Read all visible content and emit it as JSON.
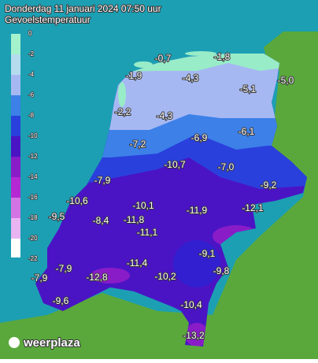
{
  "header": {
    "title": "Donderdag 11 januari 2024 07:50 uur",
    "subtitle": "Gevoelstemperatuur"
  },
  "legend": {
    "labels": [
      "0",
      "-2",
      "-4",
      "-6",
      "-8",
      "-10",
      "-12",
      "-14",
      "-16",
      "-18",
      "-20",
      "-22"
    ]
  },
  "stations": [
    "-0,7",
    "-1,8",
    "-1,9",
    "-4,3",
    "-5,0",
    "-5,1",
    "-2,2",
    "-4,3",
    "-6,1",
    "-6,9",
    "-7,2",
    "-10,7",
    "-7,0",
    "-7,9",
    "-9,2",
    "-10,6",
    "-10,1",
    "-11,9",
    "-12,1",
    "-9,5",
    "-8,4",
    "-11,8",
    "-11,1",
    "-9,1",
    "-11,4",
    "-7,9",
    "-12,8",
    "-10,2",
    "-9,8",
    "-7,9",
    "-9,6",
    "-10,4",
    "-13,2"
  ],
  "logo": "weerplaza"
}
